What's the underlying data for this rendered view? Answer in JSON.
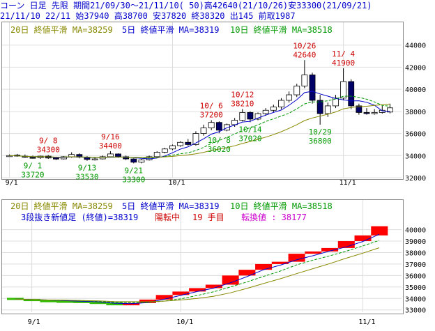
{
  "header": {
    "line1": "コーン 日足 先限 期間21/09/30～21/11/10( 50)高42640(21/10/26)安33300(21/09/21)",
    "line2": "21/11/10 22/11 始37940 高38700 安37820 終38320 出145 前取1987",
    "ma20_label": "20日 終値平滑 MA=38259",
    "ma5_label": "5日 終値平滑 MA=38319",
    "ma10_label": "10日 終値平滑 MA=38518",
    "ma20_label_b": "20日 終値平滑 MA=38259",
    "ma5_label_b": "5日 終値平滑 MA=38319",
    "ma10_label_b": "10日 終値平滑 MA=38518",
    "three_line_label": "3段抜き新値足 (終値)=38319",
    "three_line_status": "陽転中",
    "three_line_count": "19 手目",
    "three_line_reversal": "転換値 : 38177"
  },
  "colors": {
    "ma5": "#0000cc",
    "ma10": "#009900",
    "ma20": "#888800",
    "up_candle": "#ffffff",
    "down_candle": "#000066",
    "high_label": "#cc0000",
    "low_label": "#009900",
    "brick_up": "#ff0000",
    "brick_down": "#33bb00"
  },
  "chart_data": [
    {
      "type": "candlestick",
      "x_tick_labels": [
        "9/1",
        "10/1",
        "11/1"
      ],
      "y_tick_labels": [
        "44000",
        "42000",
        "40000",
        "38000",
        "36000",
        "34000",
        "32000"
      ],
      "ylim": [
        32000,
        44800
      ],
      "candles": [
        {
          "o": 34000,
          "h": 34100,
          "l": 33900,
          "c": 34000
        },
        {
          "o": 34050,
          "h": 34150,
          "l": 33900,
          "c": 33950
        },
        {
          "o": 33950,
          "h": 34100,
          "l": 33800,
          "c": 33850
        },
        {
          "o": 33850,
          "h": 34000,
          "l": 33720,
          "c": 33800
        },
        {
          "o": 33800,
          "h": 34000,
          "l": 33700,
          "c": 33950
        },
        {
          "o": 33950,
          "h": 34050,
          "l": 33700,
          "c": 33780
        },
        {
          "o": 33780,
          "h": 33900,
          "l": 33600,
          "c": 33700
        },
        {
          "o": 33700,
          "h": 33950,
          "l": 33650,
          "c": 33900
        },
        {
          "o": 33900,
          "h": 34300,
          "l": 33800,
          "c": 34100
        },
        {
          "o": 34100,
          "h": 34200,
          "l": 33750,
          "c": 33850
        },
        {
          "o": 33850,
          "h": 33950,
          "l": 33530,
          "c": 33650
        },
        {
          "o": 33650,
          "h": 33850,
          "l": 33550,
          "c": 33700
        },
        {
          "o": 33700,
          "h": 34000,
          "l": 33650,
          "c": 33900
        },
        {
          "o": 33900,
          "h": 34400,
          "l": 33850,
          "c": 34150
        },
        {
          "o": 34150,
          "h": 34200,
          "l": 33800,
          "c": 33900
        },
        {
          "o": 33900,
          "h": 34000,
          "l": 33600,
          "c": 33700
        },
        {
          "o": 33700,
          "h": 33750,
          "l": 33300,
          "c": 33400
        },
        {
          "o": 33400,
          "h": 33700,
          "l": 33300,
          "c": 33600
        },
        {
          "o": 33600,
          "h": 34000,
          "l": 33550,
          "c": 33900
        },
        {
          "o": 33900,
          "h": 34400,
          "l": 33800,
          "c": 34300
        },
        {
          "o": 34300,
          "h": 34700,
          "l": 34200,
          "c": 34600
        },
        {
          "o": 34600,
          "h": 35000,
          "l": 34500,
          "c": 34900
        },
        {
          "o": 34900,
          "h": 35300,
          "l": 34800,
          "c": 35200
        },
        {
          "o": 35200,
          "h": 35500,
          "l": 34900,
          "c": 35000
        },
        {
          "o": 35000,
          "h": 36200,
          "l": 34900,
          "c": 36000
        },
        {
          "o": 36000,
          "h": 36800,
          "l": 35800,
          "c": 36500
        },
        {
          "o": 36500,
          "h": 37200,
          "l": 36300,
          "c": 37000
        },
        {
          "o": 37000,
          "h": 37100,
          "l": 36020,
          "c": 36300
        },
        {
          "o": 36300,
          "h": 36900,
          "l": 36200,
          "c": 36800
        },
        {
          "o": 36800,
          "h": 37400,
          "l": 36600,
          "c": 37200
        },
        {
          "o": 37200,
          "h": 38210,
          "l": 37100,
          "c": 37900
        },
        {
          "o": 37900,
          "h": 38000,
          "l": 37020,
          "c": 37300
        },
        {
          "o": 37300,
          "h": 37900,
          "l": 37200,
          "c": 37800
        },
        {
          "o": 37800,
          "h": 38300,
          "l": 37600,
          "c": 38100
        },
        {
          "o": 38100,
          "h": 38600,
          "l": 37900,
          "c": 38400
        },
        {
          "o": 38400,
          "h": 39200,
          "l": 38200,
          "c": 39000
        },
        {
          "o": 39000,
          "h": 39800,
          "l": 38800,
          "c": 39500
        },
        {
          "o": 39500,
          "h": 40500,
          "l": 39300,
          "c": 40300
        },
        {
          "o": 40300,
          "h": 42640,
          "l": 40100,
          "c": 41300
        },
        {
          "o": 41300,
          "h": 41500,
          "l": 38700,
          "c": 39000
        },
        {
          "o": 39000,
          "h": 39500,
          "l": 36800,
          "c": 37800
        },
        {
          "o": 37800,
          "h": 38800,
          "l": 37500,
          "c": 38500
        },
        {
          "o": 38500,
          "h": 39500,
          "l": 38300,
          "c": 39200
        },
        {
          "o": 39200,
          "h": 41900,
          "l": 39000,
          "c": 40700
        },
        {
          "o": 40700,
          "h": 40900,
          "l": 38200,
          "c": 38500
        },
        {
          "o": 38500,
          "h": 38700,
          "l": 37700,
          "c": 37900
        },
        {
          "o": 37900,
          "h": 38300,
          "l": 37700,
          "c": 37800
        },
        {
          "o": 37800,
          "h": 38200,
          "l": 37700,
          "c": 37900
        },
        {
          "o": 37900,
          "h": 38500,
          "l": 37800,
          "c": 38100
        },
        {
          "o": 37940,
          "h": 38700,
          "l": 37820,
          "c": 38320
        }
      ],
      "annotations": [
        {
          "date": "9/ 8",
          "value": "34300",
          "idx": 5,
          "kind": "high"
        },
        {
          "date": "9/16",
          "value": "34400",
          "idx": 13,
          "kind": "high"
        },
        {
          "date": "10/ 6",
          "value": "37200",
          "idx": 26,
          "kind": "high"
        },
        {
          "date": "10/12",
          "value": "38210",
          "idx": 30,
          "kind": "high"
        },
        {
          "date": "10/26",
          "value": "42640",
          "idx": 38,
          "kind": "high"
        },
        {
          "date": "11/ 4",
          "value": "41900",
          "idx": 43,
          "kind": "high"
        },
        {
          "date": "9/ 1",
          "value": "33720",
          "idx": 3,
          "kind": "low"
        },
        {
          "date": "9/13",
          "value": "33530",
          "idx": 10,
          "kind": "low"
        },
        {
          "date": "9/21",
          "value": "33300",
          "idx": 16,
          "kind": "low"
        },
        {
          "date": "10/ 8",
          "value": "36020",
          "idx": 27,
          "kind": "low"
        },
        {
          "date": "10/14",
          "value": "37020",
          "idx": 31,
          "kind": "low"
        },
        {
          "date": "10/29",
          "value": "36800",
          "idx": 40,
          "kind": "low"
        }
      ]
    },
    {
      "type": "three-line-break",
      "x_tick_labels": [
        "9/1",
        "10/1",
        "11/1"
      ],
      "y_tick_labels": [
        "40000",
        "39000",
        "38000",
        "37000",
        "36000",
        "35000",
        "34000",
        "33000"
      ],
      "ylim": [
        32800,
        40400
      ],
      "bricks": [
        {
          "lo": 33950,
          "hi": 34050,
          "dir": "down"
        },
        {
          "lo": 33850,
          "hi": 33950,
          "dir": "down"
        },
        {
          "lo": 33800,
          "hi": 33850,
          "dir": "down"
        },
        {
          "lo": 33780,
          "hi": 33800,
          "dir": "down"
        },
        {
          "lo": 33700,
          "hi": 33780,
          "dir": "down"
        },
        {
          "lo": 33650,
          "hi": 33700,
          "dir": "down"
        },
        {
          "lo": 33400,
          "hi": 33650,
          "dir": "down"
        },
        {
          "lo": 33400,
          "hi": 33600,
          "dir": "up"
        },
        {
          "lo": 33600,
          "hi": 33900,
          "dir": "up"
        },
        {
          "lo": 33900,
          "hi": 34300,
          "dir": "up"
        },
        {
          "lo": 34300,
          "hi": 34600,
          "dir": "up"
        },
        {
          "lo": 34600,
          "hi": 34900,
          "dir": "up"
        },
        {
          "lo": 34900,
          "hi": 35200,
          "dir": "up"
        },
        {
          "lo": 35200,
          "hi": 36000,
          "dir": "up"
        },
        {
          "lo": 36000,
          "hi": 36500,
          "dir": "up"
        },
        {
          "lo": 36500,
          "hi": 37000,
          "dir": "up"
        },
        {
          "lo": 37000,
          "hi": 37200,
          "dir": "up"
        },
        {
          "lo": 37200,
          "hi": 37900,
          "dir": "up"
        },
        {
          "lo": 37900,
          "hi": 38100,
          "dir": "up"
        },
        {
          "lo": 38100,
          "hi": 38400,
          "dir": "up"
        },
        {
          "lo": 38400,
          "hi": 39000,
          "dir": "up"
        },
        {
          "lo": 39000,
          "hi": 39500,
          "dir": "up"
        },
        {
          "lo": 39500,
          "hi": 40300,
          "dir": "up"
        }
      ]
    }
  ]
}
